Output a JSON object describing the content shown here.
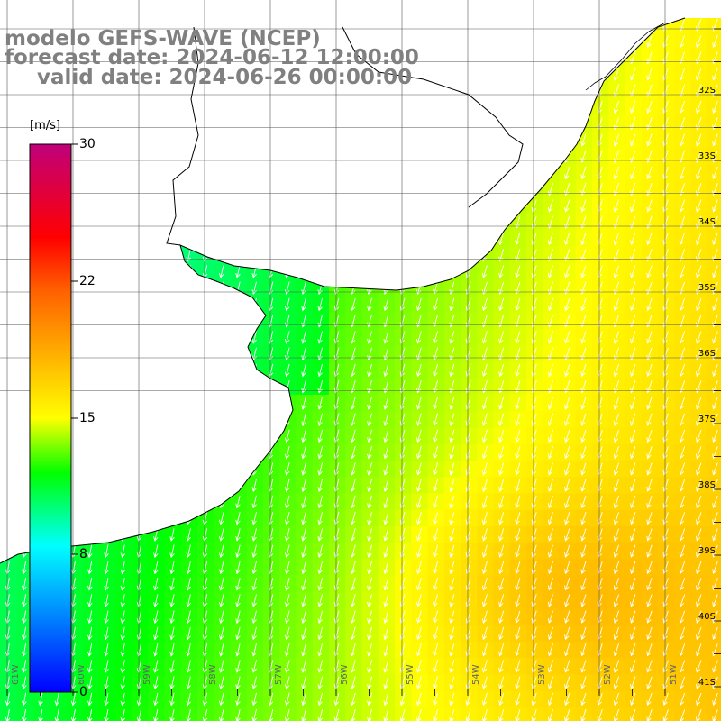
{
  "header": {
    "line1": "modelo GEFS-WAVE (NCEP)",
    "line2": "forecast date: 2024-06-12 12:00:00",
    "line3": "valid date: 2024-06-26 00:00:00"
  },
  "colorbar": {
    "unit": "[m/s]",
    "labels": [
      "30",
      "22",
      "15",
      "8",
      "0"
    ],
    "stops": [
      "#0000ff",
      "#00ffff",
      "#00ff00",
      "#ffff00",
      "#ff0000",
      "#c0007a"
    ]
  },
  "axes": {
    "lat_labels": [
      "32S",
      "33S",
      "34S",
      "35S",
      "36S",
      "37S",
      "38S",
      "39S",
      "40S",
      "41S"
    ],
    "lon_labels": [
      "61W",
      "60W",
      "59W",
      "58W",
      "57W",
      "56W",
      "55W",
      "54W",
      "53W",
      "52W",
      "51W"
    ]
  }
}
